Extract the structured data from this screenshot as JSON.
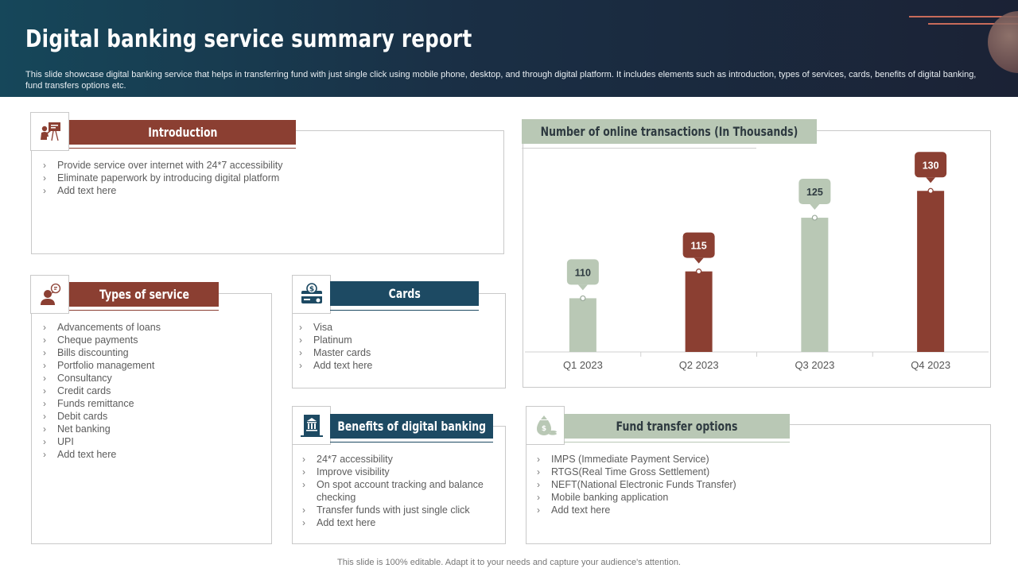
{
  "header": {
    "title": "Digital banking service summary report",
    "subtitle": "This slide showcase digital banking service that helps in transferring fund with just single click using mobile phone, desktop, and through digital platform. It includes elements such as introduction, types of services, cards, benefits of digital banking, fund transfers options etc."
  },
  "introduction": {
    "heading": "Introduction",
    "icon": "presentation-icon",
    "items": [
      "Provide  service  over  internet  with 24*7 accessibility",
      "Eliminate paperwork  by introducing digital platform",
      "Add text here"
    ]
  },
  "types": {
    "heading": "Types of service",
    "icon": "customer-service-icon",
    "items": [
      "Advancements of loans",
      "Cheque  payments",
      "Bills discounting",
      "Portfolio management",
      "Consultancy",
      "Credit cards",
      "Funds remittance",
      "Debit cards",
      "Net banking",
      "UPI",
      "Add text here"
    ]
  },
  "cards": {
    "heading": "Cards",
    "icon": "card-dollar-icon",
    "items": [
      "Visa",
      "Platinum",
      "Master cards",
      "Add text here"
    ]
  },
  "benefits": {
    "heading": "Benefits of digital banking",
    "icon": "bank-building-icon",
    "items": [
      "24*7 accessibility",
      "Improve  visibility",
      "On spot account tracking and balance checking",
      "Transfer  funds with just single click",
      "Add text here"
    ]
  },
  "fund_transfer": {
    "heading": "Fund transfer options",
    "icon": "money-bag-icon",
    "items": [
      "IMPS (Immediate Payment Service)",
      "RTGS(Real Time Gross Settlement)",
      "NEFT(National  Electronic Funds Transfer)",
      "Mobile banking application",
      "Add text here"
    ]
  },
  "chart_data": {
    "type": "bar",
    "title": "Number of online transactions (In Thousands)",
    "categories": [
      "Q1 2023",
      "Q2 2023",
      "Q3 2023",
      "Q4 2023"
    ],
    "values": [
      110,
      115,
      125,
      130
    ],
    "colors": [
      "#b9c8b5",
      "#8b3f32",
      "#b9c8b5",
      "#8b3f32"
    ],
    "ylim": [
      100,
      133
    ],
    "xlabel": "",
    "ylabel": "",
    "grid": false,
    "data_labels": true
  },
  "footer": "This slide is 100% editable. Adapt it to your needs and capture your audience's attention."
}
